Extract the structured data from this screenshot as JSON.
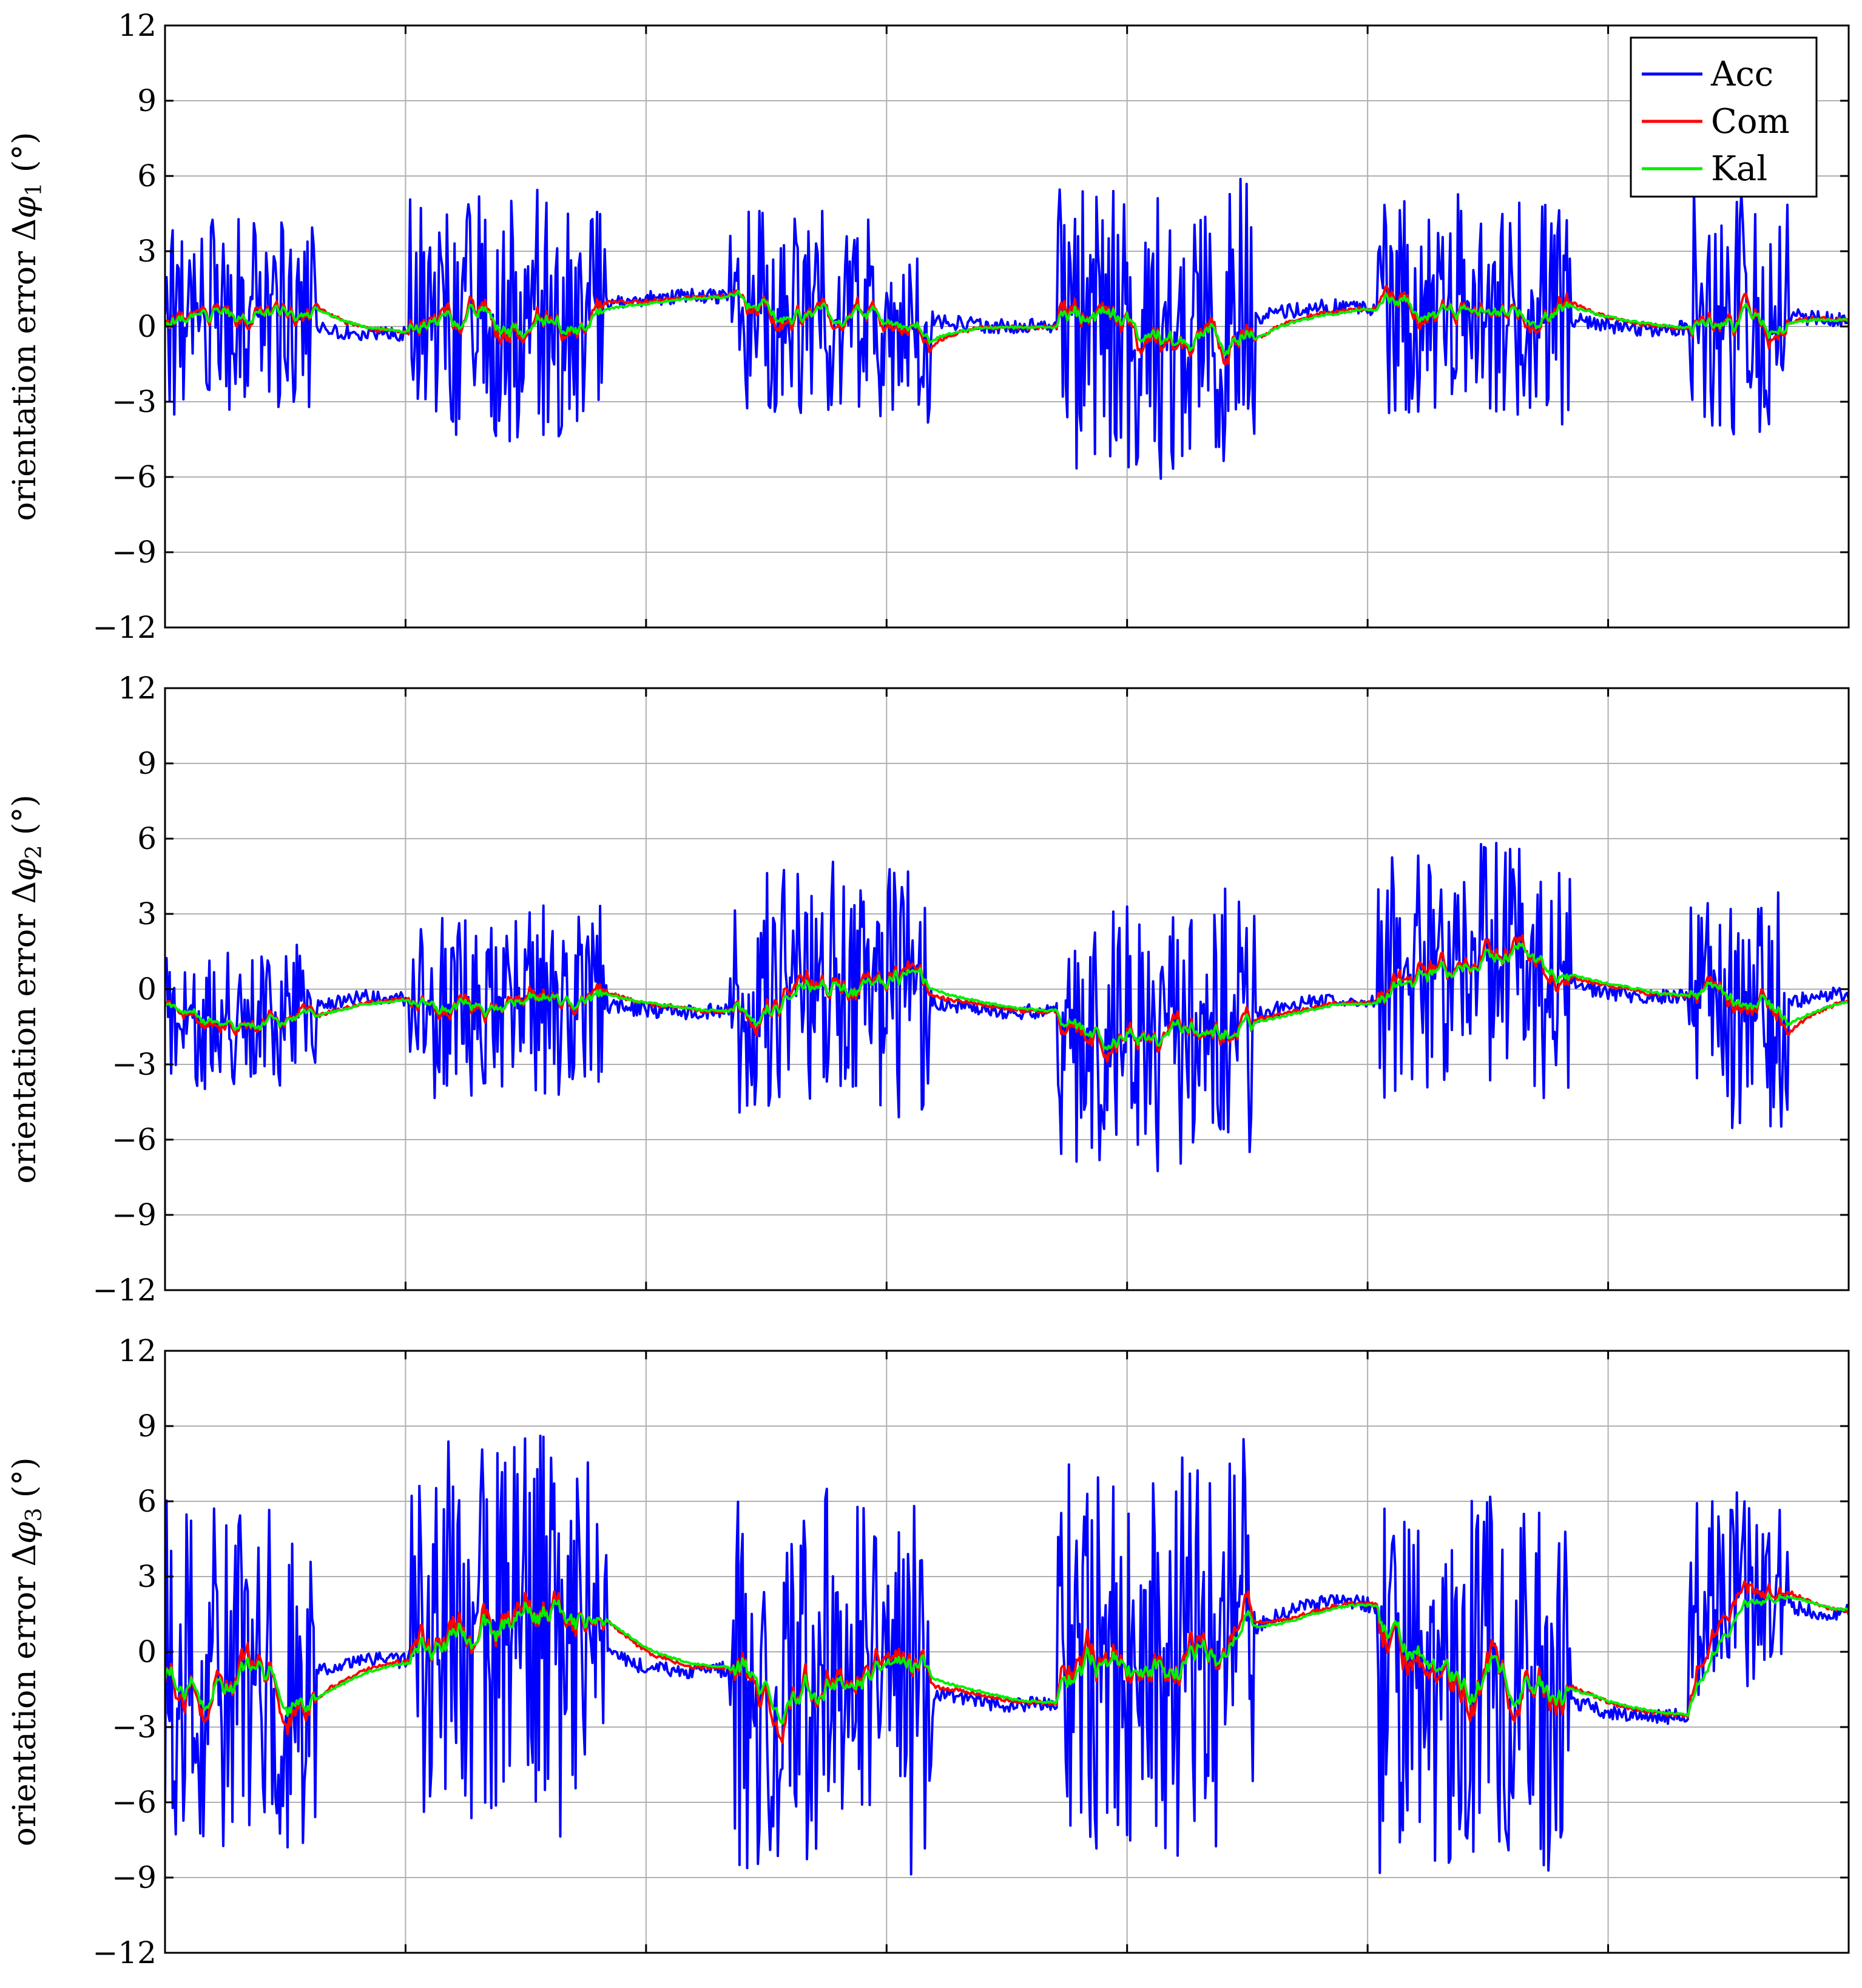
{
  "chart_data": [
    {
      "type": "line",
      "ylabel": "orientation error Δφ₁ (°)",
      "ylabel_parts": {
        "prefix": "orientation error Δ",
        "symbol": "φ",
        "sub": "1",
        "suffix": " (°)"
      },
      "ylim": [
        -12,
        12
      ],
      "yticks": [
        12,
        9,
        6,
        3,
        0,
        -3,
        -6,
        -9,
        -12
      ],
      "ytick_labels": [
        "12",
        "9",
        "6",
        "3",
        "0",
        "−3",
        "−6",
        "−9",
        "−12"
      ],
      "x_gridlines": 7,
      "grid": true,
      "legend": {
        "placement": "top-right",
        "entries": [
          "Acc",
          "Com",
          "Kal"
        ]
      },
      "segments": [
        {
          "amp_acc": 4.0,
          "level": 0.0,
          "drift": 0.3
        },
        {
          "amp_acc": 5.0,
          "level": 0.8,
          "drift": -0.4
        },
        {
          "amp_acc": 4.2,
          "level": 0.3,
          "drift": 0.3
        },
        {
          "amp_acc": 5.8,
          "level": 0.2,
          "drift": -0.6
        },
        {
          "amp_acc": 4.5,
          "level": 0.4,
          "drift": 0.5
        },
        {
          "amp_acc": 5.2,
          "level": 0.5,
          "drift": 0.2
        }
      ]
    },
    {
      "type": "line",
      "ylabel": "orientation error Δφ₂ (°)",
      "ylabel_parts": {
        "prefix": "orientation error Δ",
        "symbol": "φ",
        "sub": "2",
        "suffix": " (°)"
      },
      "ylim": [
        -12,
        12
      ],
      "yticks": [
        12,
        9,
        6,
        3,
        0,
        -3,
        -6,
        -9,
        -12
      ],
      "ytick_labels": [
        "12",
        "9",
        "6",
        "3",
        "0",
        "−3",
        "−6",
        "−9",
        "−12"
      ],
      "x_gridlines": 7,
      "grid": true,
      "segments": [
        {
          "amp_acc": 2.8,
          "level": -0.8,
          "drift": -0.5
        },
        {
          "amp_acc": 4.0,
          "level": -0.6,
          "drift": 0.3
        },
        {
          "amp_acc": 5.0,
          "level": -0.4,
          "drift": 0.5
        },
        {
          "amp_acc": 5.5,
          "level": -1.2,
          "drift": -0.8
        },
        {
          "amp_acc": 5.0,
          "level": 0.3,
          "drift": 0.6
        },
        {
          "amp_acc": 4.8,
          "level": -0.8,
          "drift": -0.6
        }
      ]
    },
    {
      "type": "line",
      "ylabel": "orientation error Δφ₃ (°)",
      "ylabel_parts": {
        "prefix": "orientation error Δ",
        "symbol": "φ",
        "sub": "3",
        "suffix": " (°)"
      },
      "ylim": [
        -12,
        12
      ],
      "yticks": [
        12,
        9,
        6,
        3,
        0,
        -3,
        -6,
        -9,
        -12
      ],
      "ytick_labels": [
        "12",
        "9",
        "6",
        "3",
        "0",
        "−3",
        "−6",
        "−9",
        "−12"
      ],
      "x_gridlines": 7,
      "grid": true,
      "segments": [
        {
          "amp_acc": 7.0,
          "level": -0.8,
          "drift": -0.5
        },
        {
          "amp_acc": 8.0,
          "level": 0.0,
          "drift": 0.8
        },
        {
          "amp_acc": 7.5,
          "level": -1.5,
          "drift": 0.6
        },
        {
          "amp_acc": 8.0,
          "level": 0.8,
          "drift": -1.2
        },
        {
          "amp_acc": 7.5,
          "level": -1.8,
          "drift": 0.8
        },
        {
          "amp_acc": 4.0,
          "level": 2.0,
          "drift": 0.5
        }
      ]
    }
  ],
  "series": [
    {
      "name": "Acc",
      "color": "#0000ff"
    },
    {
      "name": "Com",
      "color": "#ff0000"
    },
    {
      "name": "Kal",
      "color": "#00ee00"
    }
  ],
  "frame_color": "#000000",
  "grid_color": "#b0b0b0"
}
